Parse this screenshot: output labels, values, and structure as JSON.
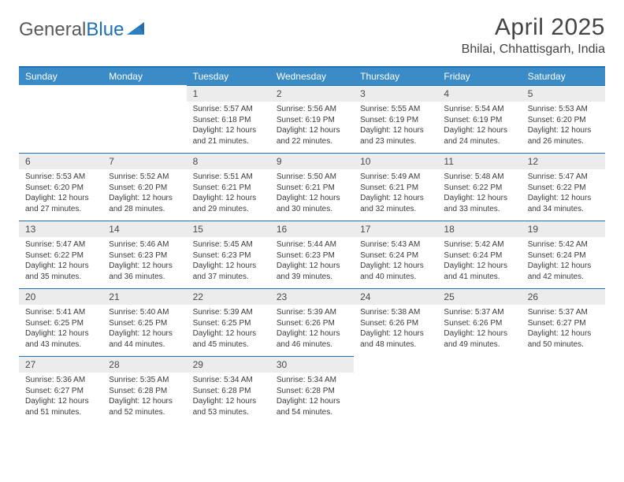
{
  "brand": {
    "name_part1": "General",
    "name_part2": "Blue"
  },
  "title": "April 2025",
  "location": "Bhilai, Chhattisgarh, India",
  "colors": {
    "header_bg": "#3b8bc7",
    "header_border": "#1f6fb2",
    "daynum_bg": "#ececec",
    "text": "#3a3a3a",
    "logo_gray": "#5a5a5a",
    "logo_blue": "#1f6fb2"
  },
  "day_headers": [
    "Sunday",
    "Monday",
    "Tuesday",
    "Wednesday",
    "Thursday",
    "Friday",
    "Saturday"
  ],
  "weeks": [
    [
      null,
      null,
      {
        "n": "1",
        "sunrise": "5:57 AM",
        "sunset": "6:18 PM",
        "day_h": 12,
        "day_m": 21
      },
      {
        "n": "2",
        "sunrise": "5:56 AM",
        "sunset": "6:19 PM",
        "day_h": 12,
        "day_m": 22
      },
      {
        "n": "3",
        "sunrise": "5:55 AM",
        "sunset": "6:19 PM",
        "day_h": 12,
        "day_m": 23
      },
      {
        "n": "4",
        "sunrise": "5:54 AM",
        "sunset": "6:19 PM",
        "day_h": 12,
        "day_m": 24
      },
      {
        "n": "5",
        "sunrise": "5:53 AM",
        "sunset": "6:20 PM",
        "day_h": 12,
        "day_m": 26
      }
    ],
    [
      {
        "n": "6",
        "sunrise": "5:53 AM",
        "sunset": "6:20 PM",
        "day_h": 12,
        "day_m": 27
      },
      {
        "n": "7",
        "sunrise": "5:52 AM",
        "sunset": "6:20 PM",
        "day_h": 12,
        "day_m": 28
      },
      {
        "n": "8",
        "sunrise": "5:51 AM",
        "sunset": "6:21 PM",
        "day_h": 12,
        "day_m": 29
      },
      {
        "n": "9",
        "sunrise": "5:50 AM",
        "sunset": "6:21 PM",
        "day_h": 12,
        "day_m": 30
      },
      {
        "n": "10",
        "sunrise": "5:49 AM",
        "sunset": "6:21 PM",
        "day_h": 12,
        "day_m": 32
      },
      {
        "n": "11",
        "sunrise": "5:48 AM",
        "sunset": "6:22 PM",
        "day_h": 12,
        "day_m": 33
      },
      {
        "n": "12",
        "sunrise": "5:47 AM",
        "sunset": "6:22 PM",
        "day_h": 12,
        "day_m": 34
      }
    ],
    [
      {
        "n": "13",
        "sunrise": "5:47 AM",
        "sunset": "6:22 PM",
        "day_h": 12,
        "day_m": 35
      },
      {
        "n": "14",
        "sunrise": "5:46 AM",
        "sunset": "6:23 PM",
        "day_h": 12,
        "day_m": 36
      },
      {
        "n": "15",
        "sunrise": "5:45 AM",
        "sunset": "6:23 PM",
        "day_h": 12,
        "day_m": 37
      },
      {
        "n": "16",
        "sunrise": "5:44 AM",
        "sunset": "6:23 PM",
        "day_h": 12,
        "day_m": 39
      },
      {
        "n": "17",
        "sunrise": "5:43 AM",
        "sunset": "6:24 PM",
        "day_h": 12,
        "day_m": 40
      },
      {
        "n": "18",
        "sunrise": "5:42 AM",
        "sunset": "6:24 PM",
        "day_h": 12,
        "day_m": 41
      },
      {
        "n": "19",
        "sunrise": "5:42 AM",
        "sunset": "6:24 PM",
        "day_h": 12,
        "day_m": 42
      }
    ],
    [
      {
        "n": "20",
        "sunrise": "5:41 AM",
        "sunset": "6:25 PM",
        "day_h": 12,
        "day_m": 43
      },
      {
        "n": "21",
        "sunrise": "5:40 AM",
        "sunset": "6:25 PM",
        "day_h": 12,
        "day_m": 44
      },
      {
        "n": "22",
        "sunrise": "5:39 AM",
        "sunset": "6:25 PM",
        "day_h": 12,
        "day_m": 45
      },
      {
        "n": "23",
        "sunrise": "5:39 AM",
        "sunset": "6:26 PM",
        "day_h": 12,
        "day_m": 46
      },
      {
        "n": "24",
        "sunrise": "5:38 AM",
        "sunset": "6:26 PM",
        "day_h": 12,
        "day_m": 48
      },
      {
        "n": "25",
        "sunrise": "5:37 AM",
        "sunset": "6:26 PM",
        "day_h": 12,
        "day_m": 49
      },
      {
        "n": "26",
        "sunrise": "5:37 AM",
        "sunset": "6:27 PM",
        "day_h": 12,
        "day_m": 50
      }
    ],
    [
      {
        "n": "27",
        "sunrise": "5:36 AM",
        "sunset": "6:27 PM",
        "day_h": 12,
        "day_m": 51
      },
      {
        "n": "28",
        "sunrise": "5:35 AM",
        "sunset": "6:28 PM",
        "day_h": 12,
        "day_m": 52
      },
      {
        "n": "29",
        "sunrise": "5:34 AM",
        "sunset": "6:28 PM",
        "day_h": 12,
        "day_m": 53
      },
      {
        "n": "30",
        "sunrise": "5:34 AM",
        "sunset": "6:28 PM",
        "day_h": 12,
        "day_m": 54
      },
      null,
      null,
      null
    ]
  ],
  "labels": {
    "sunrise_prefix": "Sunrise: ",
    "sunset_prefix": "Sunset: ",
    "daylight_prefix": "Daylight: ",
    "hours_word": " hours",
    "and_word": "and ",
    "minutes_word": " minutes."
  }
}
